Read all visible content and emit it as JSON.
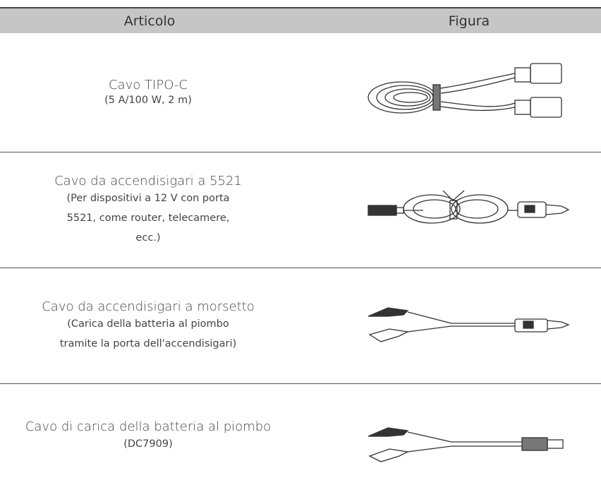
{
  "header": {
    "columns": [
      "Articolo",
      "Figura"
    ]
  },
  "rows": [
    {
      "name": "Cavo TIPO-C",
      "details": [
        "(5 A/100 W, 2 m)"
      ]
    },
    {
      "name": "Cavo da accendisigari a 5521",
      "details": [
        "(Per dispositivi a 12 V con porta",
        "5521, come router, telecamere,",
        "ecc.)"
      ]
    },
    {
      "name": "Cavo da accendisigari a morsetto",
      "details": [
        "(Carica della batteria al piombo",
        "tramite la porta dell'accendisigari)"
      ]
    },
    {
      "name": "Cavo di carica della batteria al piombo",
      "details": [
        "(DC7909)"
      ]
    }
  ]
}
